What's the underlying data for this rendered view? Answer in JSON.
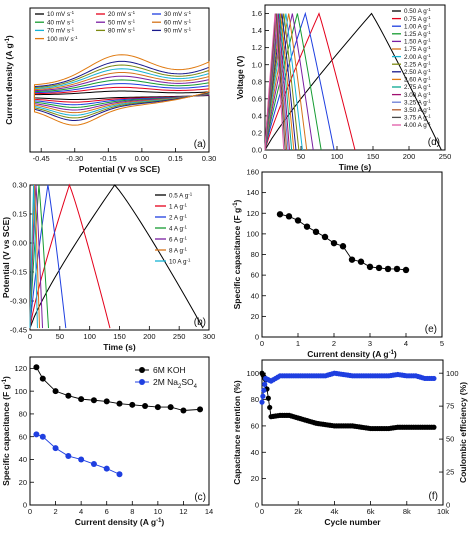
{
  "chart_data": [
    {
      "panel": "(a)",
      "type": "line",
      "xlabel": "Potential (V vs SCE)",
      "ylabel": "Current density (A g-1)",
      "xlim": [
        -0.5,
        0.3
      ],
      "xticks": [
        "-0.45",
        "-0.30",
        "-0.15",
        "0.00",
        "0.15",
        "0.30"
      ],
      "legend_cols": 3,
      "series": [
        {
          "name": "10 mV s-1",
          "color": "#000000",
          "scale": 0.12
        },
        {
          "name": "20 mV s-1",
          "color": "#e4001b",
          "scale": 0.21
        },
        {
          "name": "30 mV s-1",
          "color": "#1f3fe0",
          "scale": 0.3
        },
        {
          "name": "40 mV s-1",
          "color": "#169c32",
          "scale": 0.39
        },
        {
          "name": "50 mV s-1",
          "color": "#7a1fa2",
          "scale": 0.48
        },
        {
          "name": "60 mV s-1",
          "color": "#d5731a",
          "scale": 0.57
        },
        {
          "name": "70 mV s-1",
          "color": "#16b3d4",
          "scale": 0.66
        },
        {
          "name": "80 mV s-1",
          "color": "#7d8a12",
          "scale": 0.75
        },
        {
          "name": "90 mV s-1",
          "color": "#1a1a8c",
          "scale": 0.84
        },
        {
          "name": "100 mV s-1",
          "color": "#e07a10",
          "scale": 1.0
        }
      ]
    },
    {
      "panel": "(b)",
      "type": "line",
      "xlabel": "Time (s)",
      "ylabel": "Potential (V vs SCE)",
      "xlim": [
        0,
        300
      ],
      "ylim": [
        -0.45,
        0.3
      ],
      "xticks": [
        0,
        50,
        100,
        150,
        200,
        250,
        300
      ],
      "yticks": [
        "-0.45",
        "-0.30",
        "-0.15",
        "0.00",
        "0.15",
        "0.30"
      ],
      "series": [
        {
          "name": "0.5 A g-1",
          "color": "#000000",
          "charge": 142,
          "end": 290
        },
        {
          "name": "1 A g-1",
          "color": "#e4001b",
          "charge": 66,
          "end": 134
        },
        {
          "name": "2 A g-1",
          "color": "#1f3fe0",
          "charge": 30,
          "end": 60
        },
        {
          "name": "4 A g-1",
          "color": "#169c32",
          "charge": 15,
          "end": 31
        },
        {
          "name": "6 A g-1",
          "color": "#7a1fa2",
          "charge": 10,
          "end": 21
        },
        {
          "name": "8 A g-1",
          "color": "#d5731a",
          "charge": 7.5,
          "end": 16
        },
        {
          "name": "10 A g-1",
          "color": "#16b3d4",
          "charge": 6,
          "end": 12.5
        }
      ]
    },
    {
      "panel": "(c)",
      "type": "scatter",
      "xlabel": "Current density (A g-1)",
      "ylabel": "Specific capacitance (F g-1)",
      "xlim": [
        0,
        14
      ],
      "ylim": [
        0,
        130
      ],
      "xticks": [
        0,
        2,
        4,
        6,
        8,
        10,
        12,
        14
      ],
      "yticks": [
        0,
        20,
        40,
        60,
        80,
        100,
        120
      ],
      "series": [
        {
          "name": "6M KOH",
          "color": "#000000",
          "x": [
            0.5,
            1,
            2,
            3,
            4,
            5,
            6,
            7,
            8,
            9,
            10,
            11,
            12,
            13.3
          ],
          "y": [
            121,
            111,
            100,
            96,
            93,
            92,
            91,
            89,
            88,
            87,
            86,
            86,
            83,
            84
          ]
        },
        {
          "name": "2M Na2SO4",
          "color": "#1f3fe0",
          "x": [
            0.5,
            1,
            2,
            3,
            4,
            5,
            6,
            7
          ],
          "y": [
            62,
            60,
            50,
            43,
            40,
            36,
            32,
            27
          ]
        }
      ]
    },
    {
      "panel": "(d)",
      "type": "line",
      "xlabel": "Time (s)",
      "ylabel": "Voltage (V)",
      "xlim": [
        0,
        250
      ],
      "ylim": [
        0,
        1.7
      ],
      "xticks": [
        0,
        50,
        100,
        150,
        200,
        250
      ],
      "yticks": [
        "0.0",
        "0.2",
        "0.4",
        "0.6",
        "0.8",
        "1.0",
        "1.2",
        "1.4",
        "1.6"
      ],
      "series": [
        {
          "name": "0.50 A g-1",
          "color": "#000000",
          "charge": 148,
          "end": 245
        },
        {
          "name": "0.75 A g-1",
          "color": "#e4001b",
          "charge": 75,
          "end": 125
        },
        {
          "name": "1.00 A g-1",
          "color": "#1f3fe0",
          "charge": 56,
          "end": 96
        },
        {
          "name": "1.25 A g-1",
          "color": "#169c32",
          "charge": 45,
          "end": 78
        },
        {
          "name": "1.50 A g-1",
          "color": "#7a1fa2",
          "charge": 38,
          "end": 67
        },
        {
          "name": "1.75 A g-1",
          "color": "#d5731a",
          "charge": 33,
          "end": 58
        },
        {
          "name": "2.00 A g-1",
          "color": "#16b3d4",
          "charge": 29,
          "end": 52
        },
        {
          "name": "2.25 A g-1",
          "color": "#7d8a12",
          "charge": 26,
          "end": 47
        },
        {
          "name": "2.50 A g-1",
          "color": "#1a1a8c",
          "charge": 23.5,
          "end": 43
        },
        {
          "name": "2.60 A g-1",
          "color": "#e07a10",
          "charge": 21.5,
          "end": 40
        },
        {
          "name": "2.75 A g-1",
          "color": "#0aa890",
          "charge": 20,
          "end": 37
        },
        {
          "name": "3.00 A g-1",
          "color": "#a01070",
          "charge": 18.5,
          "end": 34
        },
        {
          "name": "3.25 A g-1",
          "color": "#6a7dd6",
          "charge": 17,
          "end": 32
        },
        {
          "name": "3.50 A g-1",
          "color": "#b35a2a",
          "charge": 16,
          "end": 30
        },
        {
          "name": "3.75 A g-1",
          "color": "#4a4a4a",
          "charge": 15,
          "end": 28
        },
        {
          "name": "4.00 A g-1",
          "color": "#e05aa8",
          "charge": 14,
          "end": 26
        }
      ]
    },
    {
      "panel": "(e)",
      "type": "scatter",
      "xlabel": "Current density (A g-1)",
      "ylabel": "Specific capacitance (F g-1)",
      "xlim": [
        0,
        5
      ],
      "ylim": [
        0,
        160
      ],
      "xticks": [
        0,
        1,
        2,
        3,
        4,
        5
      ],
      "yticks": [
        0,
        20,
        40,
        60,
        80,
        100,
        120,
        140,
        160
      ],
      "series": [
        {
          "name": "",
          "color": "#000000",
          "x": [
            0.5,
            0.75,
            1.0,
            1.25,
            1.5,
            1.75,
            2.0,
            2.25,
            2.5,
            2.75,
            3.0,
            3.25,
            3.5,
            3.75,
            4.0
          ],
          "y": [
            119,
            117,
            113,
            107,
            102,
            97,
            91,
            88,
            75,
            73,
            68,
            67,
            66,
            66,
            65
          ]
        }
      ]
    },
    {
      "panel": "(f)",
      "type": "scatter",
      "xlabel": "Cycle number",
      "ylabel": "Capacitance retention (%)",
      "ylabel_right": "Coulombic efficiency (%)",
      "xlim": [
        0,
        10000
      ],
      "ylim": [
        0,
        110
      ],
      "ylim_right": [
        0,
        110
      ],
      "xticks": [
        "0",
        "2k",
        "4k",
        "6k",
        "8k",
        "10k"
      ],
      "yticks": [
        0,
        20,
        40,
        60,
        80,
        100
      ],
      "yticks_right": [
        0,
        25,
        50,
        75,
        100
      ],
      "series": [
        {
          "name": "Capacitance retention",
          "color": "#000000",
          "axis": "left",
          "x": [
            0,
            200,
            500,
            1000,
            1500,
            2000,
            2500,
            3000,
            3500,
            4000,
            4500,
            5000,
            5500,
            6000,
            6500,
            7000,
            7500,
            8000,
            8500,
            9000,
            9500
          ],
          "y": [
            100,
            95,
            67,
            68,
            68,
            66,
            64,
            62,
            61,
            60,
            60,
            60,
            59,
            58,
            58,
            58,
            59,
            59,
            59,
            59,
            59
          ]
        },
        {
          "name": "Coulombic efficiency",
          "color": "#1f3fe0",
          "axis": "right",
          "x": [
            0,
            200,
            500,
            1000,
            1500,
            2000,
            2500,
            3000,
            3500,
            4000,
            4500,
            5000,
            5500,
            6000,
            6500,
            7000,
            7500,
            8000,
            8500,
            9000,
            9500
          ],
          "y": [
            78,
            96,
            94,
            98,
            98,
            98,
            98,
            98,
            98,
            100,
            99,
            98,
            98,
            98,
            98,
            98,
            99,
            98,
            98,
            96,
            96
          ]
        }
      ]
    }
  ]
}
